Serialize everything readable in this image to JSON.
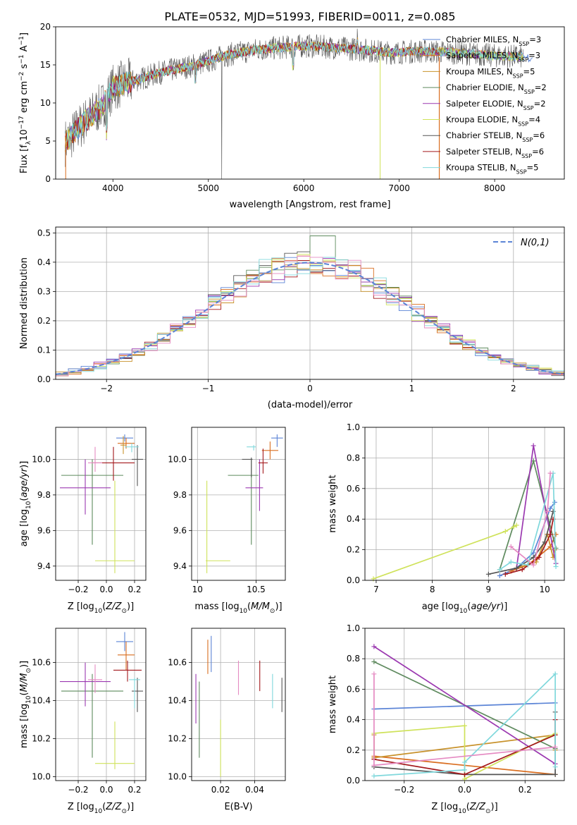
{
  "figure": {
    "title": "PLATE=0532, MJD=51993, FIBERID=0011, z=0.085"
  },
  "models": [
    {
      "key": "ch_miles",
      "label": "Chabrier MILES, N",
      "sub": "SSP",
      "eq": "=3",
      "color": "#5b84d6"
    },
    {
      "key": "sa_miles",
      "label": "Salpeter MILES, N",
      "sub": "SSP",
      "eq": "=3",
      "color": "#d96d1f"
    },
    {
      "key": "kr_miles",
      "label": "Kroupa MILES, N",
      "sub": "SSP",
      "eq": "=5",
      "color": "#c8922c"
    },
    {
      "key": "ch_elodie",
      "label": "Chabrier ELODIE, N",
      "sub": "SSP",
      "eq": "=2",
      "color": "#5e8a5e"
    },
    {
      "key": "sa_elodie",
      "label": "Salpeter ELODIE, N",
      "sub": "SSP",
      "eq": "=2",
      "color": "#9b38b0"
    },
    {
      "key": "kr_elodie",
      "label": "Kroupa ELODIE, N",
      "sub": "SSP",
      "eq": "=4",
      "color": "#cfe25a"
    },
    {
      "key": "ch_stelib",
      "label": "Chabrier STELIB, N",
      "sub": "SSP",
      "eq": "=6",
      "color": "#555555"
    },
    {
      "key": "sa_stelib",
      "label": "Salpeter STELIB, N",
      "sub": "SSP",
      "eq": "=6",
      "color": "#a3181c"
    },
    {
      "key": "kr_stelib",
      "label": "Kroupa STELIB, N",
      "sub": "SSP",
      "eq": "=5",
      "color": "#80d8dc"
    }
  ],
  "chart_data": [
    {
      "id": "spectrum",
      "type": "line",
      "xlabel": "wavelength [Angstrom, rest frame]",
      "ylabel": "Flux [f_λ10^-17 erg cm^-2 s^-1 A^-1]",
      "xlim": [
        3400,
        8730
      ],
      "ylim": [
        0,
        20
      ],
      "xticks": [
        4000,
        5000,
        6000,
        7000,
        8000
      ],
      "yticks": [
        0,
        5,
        10,
        15,
        20
      ],
      "grid": false,
      "legend": "right",
      "continuum": {
        "x": [
          3500,
          3700,
          3900,
          4000,
          4100,
          4300,
          4500,
          4800,
          5000,
          5200,
          5500,
          5800,
          6000,
          6300,
          6600,
          6900,
          7200,
          7450,
          7700,
          8000,
          8400
        ],
        "y": [
          4.8,
          7.5,
          9.8,
          12.0,
          12.5,
          13.2,
          14.0,
          14.8,
          15.5,
          16.3,
          17.0,
          17.3,
          17.5,
          17.3,
          17.0,
          16.6,
          16.8,
          16.7,
          16.5,
          16.2,
          16.0
        ]
      }
    },
    {
      "id": "residuals",
      "type": "histogram",
      "xlabel": "(data-model)/error",
      "ylabel": "Normed distribution",
      "xlim": [
        -2.5,
        2.5
      ],
      "ylim": [
        0,
        0.52
      ],
      "xticks": [
        -2,
        -1,
        0,
        1,
        2
      ],
      "yticks": [
        0.0,
        0.1,
        0.2,
        0.3,
        0.4,
        0.5
      ],
      "grid": true,
      "legend": "top-right",
      "reference_label": "N(0,1)",
      "reference_color": "#5b84d6"
    },
    {
      "id": "z_age",
      "type": "errorbar",
      "xlabel": "Z [log10(Z/Z⊙)]",
      "ylabel": "age  [log10(age/yr)]",
      "xlim": [
        -0.36,
        0.28
      ],
      "ylim": [
        9.32,
        10.18
      ],
      "xticks": [
        -0.2,
        0.0,
        0.2
      ],
      "xticklabels": [
        "−0.2",
        "0.0",
        "0.2"
      ],
      "yticks": [
        9.4,
        9.6,
        9.8,
        10.0
      ],
      "grid": true,
      "points": [
        {
          "m": 0,
          "x": 0.13,
          "xe": [
            0.06,
            0.06
          ],
          "y": 10.12,
          "ye": [
            0.02,
            0.02
          ]
        },
        {
          "m": 1,
          "x": 0.14,
          "xe": [
            0.06,
            0.06
          ],
          "y": 10.09,
          "ye": [
            0.03,
            0.03
          ]
        },
        {
          "m": 2,
          "x": 0.12,
          "xe": [
            0.02,
            0.02
          ],
          "y": 10.08,
          "ye": [
            0.05,
            0.05
          ]
        },
        {
          "m": 3,
          "x": -0.1,
          "xe": [
            0.22,
            0.22
          ],
          "y": 9.91,
          "ye": [
            0.39,
            0.09
          ]
        },
        {
          "m": 4,
          "x": -0.15,
          "xe": [
            0.18,
            0.18
          ],
          "y": 9.84,
          "ye": [
            0.15,
            0.16
          ]
        },
        {
          "m": 5,
          "x": 0.06,
          "xe": [
            0.14,
            0.14
          ],
          "y": 9.43,
          "ye": [
            0.07,
            0.45
          ]
        },
        {
          "m": 6,
          "x": 0.22,
          "xe": [
            0.04,
            0.04
          ],
          "y": 10.0,
          "ye": [
            0.15,
            0.08
          ]
        },
        {
          "m": 7,
          "x": 0.05,
          "xe": [
            0.15,
            0.15
          ],
          "y": 9.98,
          "ye": [
            0.1,
            0.09
          ]
        },
        {
          "m": 8,
          "x": 0.18,
          "xe": [
            0.05,
            0.05
          ],
          "y": 10.07,
          "ye": [
            0.03,
            0.02
          ]
        },
        {
          "m": 9,
          "x": -0.08,
          "xe": [
            0.05,
            0.05
          ],
          "y": 9.98,
          "ye": [
            0.05,
            0.09
          ]
        }
      ]
    },
    {
      "id": "mass_age",
      "type": "errorbar",
      "xlabel": "mass [log10(M/M⊙)]",
      "ylabel": "",
      "xlim": [
        9.95,
        10.75
      ],
      "ylim": [
        9.32,
        10.18
      ],
      "xticks": [
        10.0,
        10.5
      ],
      "yticks": [
        9.4,
        9.6,
        9.8,
        10.0
      ],
      "grid": true,
      "points": [
        {
          "m": 0,
          "x": 10.68,
          "xe": [
            0.05,
            0.05
          ],
          "y": 10.12,
          "ye": [
            0.05,
            0.02
          ]
        },
        {
          "m": 1,
          "x": 10.62,
          "xe": [
            0.07,
            0.07
          ],
          "y": 10.05,
          "ye": [
            0.05,
            0.05
          ]
        },
        {
          "m": 3,
          "x": 10.46,
          "xe": [
            0.2,
            0.06
          ],
          "y": 9.91,
          "ye": [
            0.39,
            0.09
          ]
        },
        {
          "m": 4,
          "x": 10.53,
          "xe": [
            0.12,
            0.03
          ],
          "y": 9.84,
          "ye": [
            0.13,
            0.16
          ]
        },
        {
          "m": 5,
          "x": 10.08,
          "xe": [
            0.01,
            0.2
          ],
          "y": 9.43,
          "ye": [
            0.07,
            0.45
          ]
        },
        {
          "m": 6,
          "x": 10.46,
          "xe": [
            0.08,
            0.01
          ],
          "y": 10.0,
          "ye": [
            0.1,
            0.01
          ]
        },
        {
          "m": 7,
          "x": 10.56,
          "xe": [
            0.04,
            0.04
          ],
          "y": 9.98,
          "ye": [
            0.06,
            0.08
          ]
        },
        {
          "m": 8,
          "x": 10.48,
          "xe": [
            0.06,
            0.02
          ],
          "y": 10.07,
          "ye": [
            0.02,
            0.01
          ]
        }
      ]
    },
    {
      "id": "age_weight",
      "type": "line",
      "xlabel": "age  [log10(age/yr)]",
      "ylabel": "mass weight",
      "xlim": [
        6.8,
        10.35
      ],
      "ylim": [
        0,
        1
      ],
      "xticks": [
        7,
        8,
        9,
        10
      ],
      "yticks": [
        0.0,
        0.2,
        0.4,
        0.6,
        0.8,
        1.0
      ],
      "grid": true,
      "series": [
        {
          "m": 0,
          "x": [
            9.2,
            9.5,
            9.8,
            10.1,
            10.18
          ],
          "y": [
            0.03,
            0.08,
            0.18,
            0.47,
            0.51
          ]
        },
        {
          "m": 1,
          "x": [
            9.4,
            9.7,
            10.1,
            10.2
          ],
          "y": [
            0.06,
            0.1,
            0.22,
            0.3
          ]
        },
        {
          "m": 2,
          "x": [
            9.5,
            9.85,
            10.05,
            10.15,
            10.18
          ],
          "y": [
            0.08,
            0.12,
            0.3,
            0.15,
            0.2
          ]
        },
        {
          "m": 3,
          "x": [
            9.2,
            9.8,
            10.2
          ],
          "y": [
            0.07,
            0.78,
            0.21
          ]
        },
        {
          "m": 4,
          "x": [
            9.5,
            9.8,
            10.2
          ],
          "y": [
            0.08,
            0.88,
            0.11
          ]
        },
        {
          "m": 5,
          "x": [
            6.95,
            9.3,
            9.45,
            9.5
          ],
          "y": [
            0.01,
            0.32,
            0.35,
            0.36
          ]
        },
        {
          "m": 6,
          "x": [
            9.0,
            9.5,
            9.8,
            10.0,
            10.15
          ],
          "y": [
            0.04,
            0.08,
            0.15,
            0.25,
            0.45
          ]
        },
        {
          "m": 7,
          "x": [
            9.3,
            9.6,
            9.9,
            10.1,
            10.15
          ],
          "y": [
            0.04,
            0.07,
            0.15,
            0.3,
            0.4
          ]
        },
        {
          "m": 8,
          "x": [
            9.2,
            9.4,
            9.7,
            10.15,
            10.2
          ],
          "y": [
            0.07,
            0.12,
            0.1,
            0.7,
            0.09
          ]
        },
        {
          "m": 9,
          "x": [
            9.4,
            9.8,
            10.05,
            10.1
          ],
          "y": [
            0.22,
            0.1,
            0.45,
            0.7
          ]
        }
      ]
    },
    {
      "id": "z_mass",
      "type": "errorbar",
      "xlabel": "Z [log10(Z/Z⊙)]",
      "ylabel": "mass [log10(M/M⊙)]",
      "xlim": [
        -0.36,
        0.28
      ],
      "ylim": [
        9.98,
        10.78
      ],
      "xticks": [
        -0.2,
        0.0,
        0.2
      ],
      "xticklabels": [
        "−0.2",
        "0.0",
        "0.2"
      ],
      "yticks": [
        10.0,
        10.2,
        10.4,
        10.6
      ],
      "grid": true,
      "points": [
        {
          "m": 0,
          "x": 0.13,
          "xe": [
            0.06,
            0.06
          ],
          "y": 10.71,
          "ye": [
            0.05,
            0.05
          ]
        },
        {
          "m": 1,
          "x": 0.14,
          "xe": [
            0.06,
            0.06
          ],
          "y": 10.64,
          "ye": [
            0.08,
            0.07
          ]
        },
        {
          "m": 3,
          "x": -0.1,
          "xe": [
            0.22,
            0.22
          ],
          "y": 10.45,
          "ye": [
            0.35,
            0.09
          ]
        },
        {
          "m": 4,
          "x": -0.15,
          "xe": [
            0.18,
            0.18
          ],
          "y": 10.5,
          "ye": [
            0.13,
            0.1
          ]
        },
        {
          "m": 5,
          "x": 0.06,
          "xe": [
            0.14,
            0.14
          ],
          "y": 10.07,
          "ye": [
            0.03,
            0.22
          ]
        },
        {
          "m": 6,
          "x": 0.22,
          "xe": [
            0.04,
            0.04
          ],
          "y": 10.45,
          "ye": [
            0.11,
            0.07
          ]
        },
        {
          "m": 7,
          "x": 0.15,
          "xe": [
            0.1,
            0.1
          ],
          "y": 10.56,
          "ye": [
            0.06,
            0.05
          ]
        },
        {
          "m": 8,
          "x": 0.2,
          "xe": [
            0.04,
            0.04
          ],
          "y": 10.51,
          "ye": [
            0.15,
            0.01
          ]
        },
        {
          "m": 9,
          "x": -0.08,
          "xe": [
            0.05,
            0.05
          ],
          "y": 10.51,
          "ye": [
            0.07,
            0.08
          ]
        }
      ]
    },
    {
      "id": "ebv_mass",
      "type": "errorbar",
      "xlabel": "E(B-V)",
      "ylabel": "",
      "xlim": [
        0.003,
        0.058
      ],
      "ylim": [
        9.98,
        10.78
      ],
      "xticks": [
        0.02,
        0.04
      ],
      "yticks": [
        10.0,
        10.2,
        10.4,
        10.6
      ],
      "grid": true,
      "points": [
        {
          "m": 0,
          "x": 0.0145,
          "y": 10.62,
          "ye": [
            0.07,
            0.12
          ]
        },
        {
          "m": 1,
          "x": 0.0125,
          "y": 10.6,
          "ye": [
            0.06,
            0.12
          ]
        },
        {
          "m": 3,
          "x": 0.0075,
          "y": 10.3,
          "ye": [
            0.2,
            0.2
          ]
        },
        {
          "m": 4,
          "x": 0.0055,
          "y": 10.41,
          "ye": [
            0.13,
            0.13
          ]
        },
        {
          "m": 5,
          "x": 0.02,
          "y": 10.15,
          "ye": [
            0.15,
            0.15
          ]
        },
        {
          "m": 6,
          "x": 0.056,
          "y": 10.43,
          "ye": [
            0.09,
            0.09
          ]
        },
        {
          "m": 7,
          "x": 0.043,
          "y": 10.53,
          "ye": [
            0.08,
            0.08
          ]
        },
        {
          "m": 8,
          "x": 0.0505,
          "y": 10.45,
          "ye": [
            0.09,
            0.09
          ]
        },
        {
          "m": 9,
          "x": 0.0305,
          "y": 10.52,
          "ye": [
            0.09,
            0.09
          ]
        }
      ]
    },
    {
      "id": "z_weight",
      "type": "line",
      "xlabel": "Z [log10(Z/Z⊙)]",
      "ylabel": "mass weight",
      "xlim": [
        -0.33,
        0.33
      ],
      "ylim": [
        0,
        1
      ],
      "xticks": [
        -0.2,
        0.0,
        0.2
      ],
      "xticklabels": [
        "−0.2",
        "0.0",
        "0.2"
      ],
      "yticks": [
        0.0,
        0.2,
        0.4,
        0.6,
        0.8,
        1.0
      ],
      "grid": true,
      "series": [
        {
          "m": 0,
          "x": [
            -0.3,
            0.3
          ],
          "y": [
            0.47,
            0.51
          ]
        },
        {
          "m": 1,
          "x": [
            -0.3,
            0.3
          ],
          "y": [
            0.16,
            0.04
          ]
        },
        {
          "m": 2,
          "x": [
            -0.3,
            -0.3,
            0.3,
            0.3
          ],
          "y": [
            0.3,
            0.15,
            0.3,
            0.2
          ]
        },
        {
          "m": 3,
          "x": [
            -0.3,
            0.3
          ],
          "y": [
            0.78,
            0.21
          ]
        },
        {
          "m": 4,
          "x": [
            -0.3,
            0.3
          ],
          "y": [
            0.88,
            0.11
          ]
        },
        {
          "m": 5,
          "x": [
            -0.3,
            0.0,
            0.0,
            0.3
          ],
          "y": [
            0.31,
            0.36,
            0.01,
            0.31
          ]
        },
        {
          "m": 6,
          "x": [
            -0.3,
            0.0,
            0.3,
            0.3
          ],
          "y": [
            0.09,
            0.04,
            0.04,
            0.45
          ]
        },
        {
          "m": 7,
          "x": [
            -0.3,
            0.0,
            0.3,
            0.3
          ],
          "y": [
            0.14,
            0.04,
            0.3,
            0.4
          ]
        },
        {
          "m": 8,
          "x": [
            -0.3,
            0.0,
            0.0,
            0.3,
            0.3
          ],
          "y": [
            0.03,
            0.07,
            0.12,
            0.7,
            0.09
          ]
        },
        {
          "m": 9,
          "x": [
            -0.3,
            -0.3,
            0.3
          ],
          "y": [
            0.7,
            0.1,
            0.22
          ]
        }
      ]
    }
  ]
}
